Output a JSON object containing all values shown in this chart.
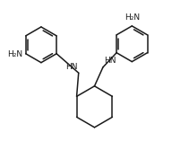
{
  "bg_color": "#ffffff",
  "line_color": "#1a1a1a",
  "line_width": 1.1,
  "font_size": 6.5,
  "figsize": [
    2.11,
    1.77
  ],
  "dpi": 100,
  "xlim": [
    0,
    10
  ],
  "ylim": [
    0,
    8.4
  ]
}
